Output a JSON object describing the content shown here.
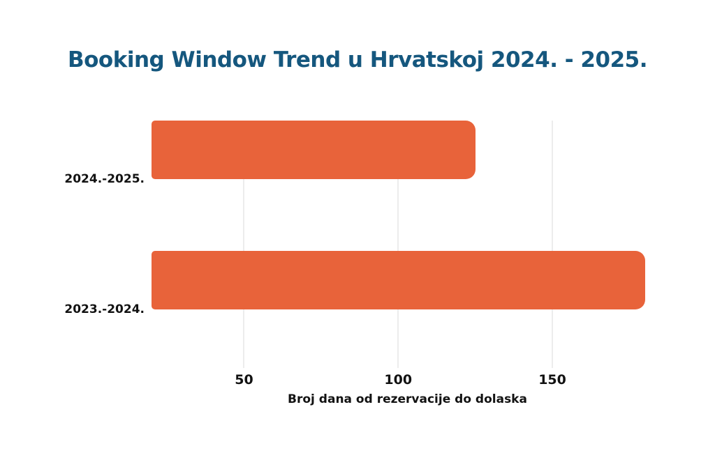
{
  "title": "Booking Window Trend u Hrvatskoj 2024. - 2025.",
  "colors": {
    "title": "#15577E",
    "bar": "#E8633A",
    "grid": "#ececec",
    "text": "#121212",
    "background": "#ffffff"
  },
  "chart_data": {
    "type": "bar",
    "orientation": "horizontal",
    "title": "Booking Window Trend u Hrvatskoj 2024. - 2025.",
    "categories": [
      "2024.-2025.",
      "2023.-2024."
    ],
    "values": [
      125,
      180
    ],
    "xlabel": "Broj dana od rezervacije do dolaska",
    "ylabel": "",
    "xlim": [
      20,
      186
    ],
    "xticks": [
      50,
      100,
      150
    ],
    "grid": "vertical-only",
    "legend_position": "none",
    "bar_color": "#E8633A"
  }
}
